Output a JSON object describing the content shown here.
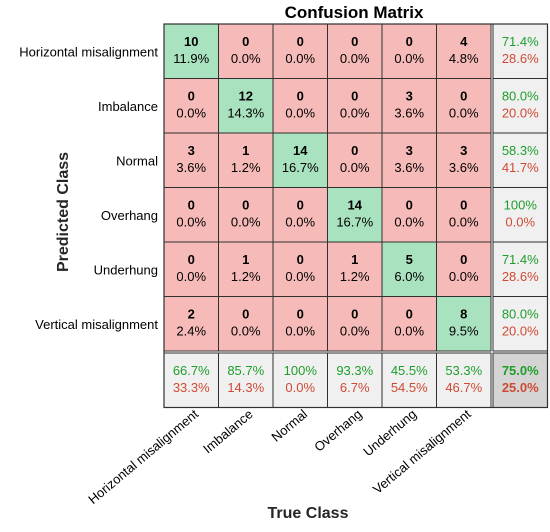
{
  "chart_data": {
    "type": "heatmap",
    "title": "Confusion Matrix",
    "xlabel": "True Class",
    "ylabel": "Predicted Class",
    "classes": [
      "Horizontal misalignment",
      "Imbalance",
      "Normal",
      "Overhang",
      "Underhung",
      "Vertical misalignment"
    ],
    "counts": [
      [
        10,
        0,
        0,
        0,
        0,
        4
      ],
      [
        0,
        12,
        0,
        0,
        3,
        0
      ],
      [
        3,
        1,
        14,
        0,
        3,
        3
      ],
      [
        0,
        0,
        0,
        14,
        0,
        0
      ],
      [
        0,
        1,
        0,
        1,
        5,
        0
      ],
      [
        2,
        0,
        0,
        0,
        0,
        8
      ]
    ],
    "cell_percents": [
      [
        "11.9%",
        "0.0%",
        "0.0%",
        "0.0%",
        "0.0%",
        "4.8%"
      ],
      [
        "0.0%",
        "14.3%",
        "0.0%",
        "0.0%",
        "3.6%",
        "0.0%"
      ],
      [
        "3.6%",
        "1.2%",
        "16.7%",
        "0.0%",
        "3.6%",
        "3.6%"
      ],
      [
        "0.0%",
        "0.0%",
        "0.0%",
        "16.7%",
        "0.0%",
        "0.0%"
      ],
      [
        "0.0%",
        "1.2%",
        "0.0%",
        "1.2%",
        "6.0%",
        "0.0%"
      ],
      [
        "2.4%",
        "0.0%",
        "0.0%",
        "0.0%",
        "0.0%",
        "9.5%"
      ]
    ],
    "row_summary": [
      {
        "correct": "71.4%",
        "wrong": "28.6%"
      },
      {
        "correct": "80.0%",
        "wrong": "20.0%"
      },
      {
        "correct": "58.3%",
        "wrong": "41.7%"
      },
      {
        "correct": "100%",
        "wrong": "0.0%"
      },
      {
        "correct": "71.4%",
        "wrong": "28.6%"
      },
      {
        "correct": "80.0%",
        "wrong": "20.0%"
      }
    ],
    "col_summary": [
      {
        "correct": "66.7%",
        "wrong": "33.3%"
      },
      {
        "correct": "85.7%",
        "wrong": "14.3%"
      },
      {
        "correct": "100%",
        "wrong": "0.0%"
      },
      {
        "correct": "93.3%",
        "wrong": "6.7%"
      },
      {
        "correct": "45.5%",
        "wrong": "54.5%"
      },
      {
        "correct": "53.3%",
        "wrong": "46.7%"
      }
    ],
    "overall": {
      "correct": "75.0%",
      "wrong": "25.0%"
    }
  },
  "colors": {
    "diagonal": "#a9e2bf",
    "off_diagonal": "#f6bbb8",
    "summary": "#f0f0f0",
    "overall": "#d4d4d4",
    "green_text": "#1f9e2c",
    "red_text": "#cf4a33",
    "grid_line": "#303030"
  }
}
